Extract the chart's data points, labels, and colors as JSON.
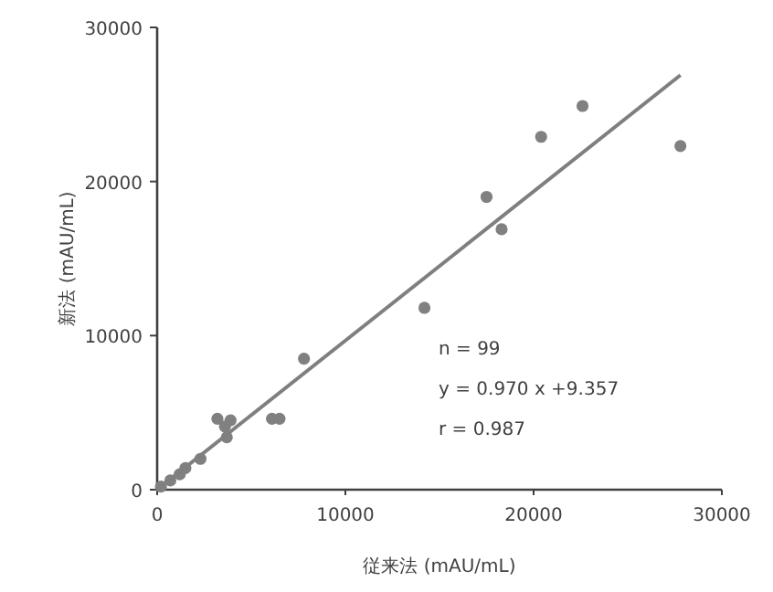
{
  "chart_data": {
    "type": "scatter",
    "xlabel": "従来法 (mAU/mL)",
    "ylabel": "新法 (mAU/mL)",
    "xlim": [
      0,
      30000
    ],
    "ylim": [
      0,
      30000
    ],
    "xticks": [
      0,
      10000,
      20000,
      30000
    ],
    "yticks": [
      0,
      10000,
      20000,
      30000
    ],
    "grid": false,
    "series": [
      {
        "marker": "circle",
        "color": "#808080",
        "x": [
          200,
          700,
          1200,
          1500,
          2300,
          3200,
          3900,
          3600,
          3700,
          6100,
          6500,
          7800,
          14200,
          17500,
          18300,
          20400,
          22600,
          27800
        ],
        "values": [
          200,
          600,
          1000,
          1400,
          2000,
          4600,
          4500,
          4100,
          3400,
          4600,
          4600,
          8500,
          11800,
          19000,
          16900,
          22900,
          24900,
          22300
        ]
      },
      {
        "type": "line",
        "color": "#7f7f7f",
        "x": [
          0,
          27800
        ],
        "values": [
          0,
          26900
        ]
      }
    ],
    "annotations": [
      "n = 99",
      "y = 0.970 x +9.357",
      "r = 0.987"
    ]
  }
}
